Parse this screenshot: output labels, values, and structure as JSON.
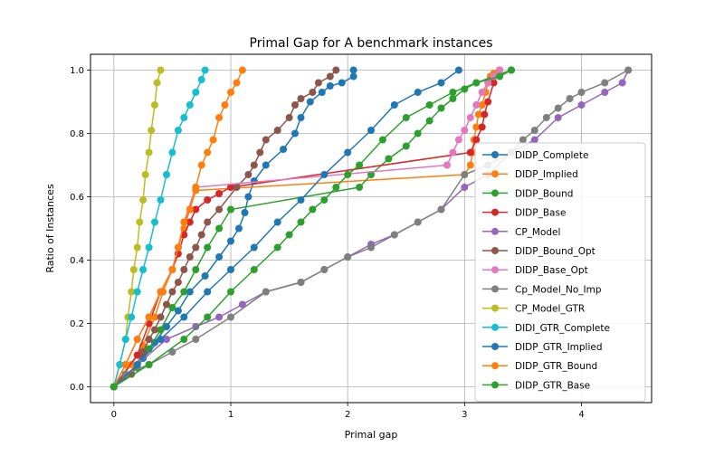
{
  "chart_data": {
    "type": "line",
    "title": "Primal Gap for A benchmark instances",
    "xlabel": "Primal gap",
    "ylabel": "Ratio of Instances",
    "xlim": [
      -0.2,
      4.6
    ],
    "ylim": [
      -0.05,
      1.05
    ],
    "xticks": [
      0,
      1,
      2,
      3,
      4
    ],
    "yticks": [
      0.0,
      0.2,
      0.4,
      0.6,
      0.8,
      1.0
    ],
    "grid": true,
    "legend_position": "lower-right",
    "series": [
      {
        "name": "DIDP_Complete",
        "color": "#1f77b4",
        "x": [
          0.0,
          0.15,
          0.25,
          0.35,
          0.45,
          0.55,
          0.65,
          0.78,
          0.9,
          1.0,
          1.07,
          1.12,
          1.15,
          1.2,
          1.3,
          1.45,
          1.55,
          1.6,
          1.68,
          1.78,
          1.85,
          1.95,
          2.05,
          2.05
        ],
        "y": [
          0.0,
          0.04,
          0.09,
          0.14,
          0.19,
          0.24,
          0.3,
          0.35,
          0.41,
          0.46,
          0.5,
          0.55,
          0.6,
          0.65,
          0.7,
          0.75,
          0.8,
          0.85,
          0.9,
          0.93,
          0.95,
          0.96,
          0.98,
          1.0
        ]
      },
      {
        "name": "DIDP_Implied",
        "color": "#ff7f0e",
        "x": [
          0.0,
          0.15,
          0.25,
          0.35,
          0.42,
          0.5,
          0.55,
          0.6,
          0.65,
          0.7,
          3.0,
          3.05,
          3.07,
          3.08,
          3.1,
          3.12,
          3.15,
          3.18,
          3.2,
          3.22,
          3.25,
          3.3
        ],
        "y": [
          0.0,
          0.07,
          0.13,
          0.22,
          0.3,
          0.37,
          0.44,
          0.5,
          0.56,
          0.62,
          0.67,
          0.7,
          0.74,
          0.78,
          0.82,
          0.86,
          0.89,
          0.93,
          0.96,
          0.98,
          0.99,
          1.0
        ]
      },
      {
        "name": "DIDP_Bound",
        "color": "#2ca02c",
        "x": [
          0.0,
          0.2,
          0.3,
          0.4,
          0.5,
          0.6,
          0.7,
          0.8,
          0.9,
          1.0,
          2.1,
          2.2,
          2.35,
          2.5,
          2.6,
          2.7,
          2.8,
          2.9,
          3.0,
          3.1,
          3.25,
          3.4
        ],
        "y": [
          0.0,
          0.06,
          0.12,
          0.18,
          0.25,
          0.3,
          0.37,
          0.44,
          0.5,
          0.56,
          0.63,
          0.67,
          0.72,
          0.76,
          0.8,
          0.84,
          0.88,
          0.91,
          0.94,
          0.96,
          0.98,
          1.0
        ]
      },
      {
        "name": "DIDP_Base",
        "color": "#d62728",
        "x": [
          0.0,
          0.2,
          0.3,
          0.4,
          0.5,
          0.55,
          0.6,
          0.65,
          0.7,
          0.8,
          0.9,
          1.0,
          3.05,
          3.1,
          3.15,
          3.17,
          3.2,
          3.25,
          3.3
        ],
        "y": [
          0.0,
          0.1,
          0.2,
          0.3,
          0.37,
          0.42,
          0.48,
          0.52,
          0.56,
          0.59,
          0.61,
          0.63,
          0.74,
          0.78,
          0.82,
          0.86,
          0.9,
          0.96,
          1.0
        ]
      },
      {
        "name": "CP_Model",
        "color": "#9467bd",
        "x": [
          0.0,
          0.2,
          0.45,
          0.7,
          0.9,
          1.1,
          1.3,
          1.6,
          1.8,
          2.0,
          2.2,
          2.4,
          2.6,
          2.8,
          3.0,
          3.2,
          3.4,
          3.6,
          3.8,
          4.0,
          4.2,
          4.35,
          4.4
        ],
        "y": [
          0.0,
          0.07,
          0.15,
          0.19,
          0.22,
          0.26,
          0.3,
          0.33,
          0.37,
          0.41,
          0.45,
          0.48,
          0.52,
          0.56,
          0.63,
          0.67,
          0.74,
          0.78,
          0.85,
          0.89,
          0.93,
          0.96,
          1.0
        ]
      },
      {
        "name": "DIDP_Bound_Opt",
        "color": "#8c564b",
        "x": [
          0.0,
          0.15,
          0.25,
          0.3,
          0.35,
          0.4,
          0.45,
          0.5,
          0.55,
          0.6,
          0.65,
          0.7,
          0.75,
          0.8,
          0.9,
          1.05,
          1.15,
          1.2,
          1.25,
          1.3,
          1.4,
          1.5,
          1.55,
          1.6,
          1.7,
          1.75,
          1.85,
          1.9
        ],
        "y": [
          0.0,
          0.04,
          0.11,
          0.15,
          0.18,
          0.22,
          0.26,
          0.3,
          0.33,
          0.37,
          0.41,
          0.44,
          0.48,
          0.52,
          0.56,
          0.63,
          0.67,
          0.7,
          0.74,
          0.78,
          0.81,
          0.85,
          0.89,
          0.91,
          0.93,
          0.96,
          0.98,
          1.0
        ]
      },
      {
        "name": "DIDP_Base_Opt",
        "color": "#e377c2",
        "x": [
          0.0,
          0.1,
          0.2,
          0.3,
          0.4,
          0.5,
          0.55,
          0.6,
          0.7,
          2.85,
          2.9,
          2.95,
          3.0,
          3.05,
          3.1,
          3.15,
          3.2,
          3.25,
          3.3
        ],
        "y": [
          0.0,
          0.07,
          0.15,
          0.22,
          0.3,
          0.37,
          0.44,
          0.52,
          0.63,
          0.7,
          0.74,
          0.78,
          0.81,
          0.85,
          0.89,
          0.93,
          0.96,
          0.98,
          1.0
        ]
      },
      {
        "name": "Cp_Model_No_Imp",
        "color": "#7f7f7f",
        "x": [
          0.0,
          0.1,
          0.3,
          0.5,
          0.7,
          1.0,
          1.3,
          1.6,
          1.8,
          2.0,
          2.2,
          2.4,
          2.6,
          2.8,
          3.0,
          3.2,
          3.4,
          3.5,
          3.6,
          3.7,
          3.8,
          3.9,
          4.0,
          4.2,
          4.4
        ],
        "y": [
          0.0,
          0.04,
          0.07,
          0.11,
          0.15,
          0.22,
          0.3,
          0.33,
          0.37,
          0.41,
          0.44,
          0.48,
          0.52,
          0.56,
          0.67,
          0.7,
          0.74,
          0.78,
          0.81,
          0.85,
          0.88,
          0.91,
          0.93,
          0.96,
          1.0
        ]
      },
      {
        "name": "CP_Model_GTR",
        "color": "#bcbd22",
        "x": [
          0.0,
          0.05,
          0.1,
          0.12,
          0.15,
          0.17,
          0.2,
          0.22,
          0.25,
          0.27,
          0.3,
          0.32,
          0.35,
          0.37,
          0.4
        ],
        "y": [
          0.0,
          0.07,
          0.15,
          0.22,
          0.3,
          0.37,
          0.44,
          0.52,
          0.59,
          0.67,
          0.74,
          0.81,
          0.89,
          0.96,
          1.0
        ]
      },
      {
        "name": "DIDI_GTR_Complete",
        "color": "#17becf",
        "x": [
          0.0,
          0.05,
          0.1,
          0.15,
          0.2,
          0.25,
          0.3,
          0.35,
          0.4,
          0.45,
          0.5,
          0.55,
          0.6,
          0.65,
          0.7,
          0.75,
          0.78
        ],
        "y": [
          0.0,
          0.07,
          0.15,
          0.22,
          0.3,
          0.37,
          0.44,
          0.52,
          0.59,
          0.67,
          0.74,
          0.81,
          0.85,
          0.89,
          0.93,
          0.97,
          1.0
        ]
      },
      {
        "name": "DIDP_GTR_Implied",
        "color": "#1f77b4",
        "x": [
          0.0,
          0.2,
          0.4,
          0.6,
          0.8,
          1.0,
          1.2,
          1.4,
          1.6,
          1.8,
          2.0,
          2.2,
          2.4,
          2.6,
          2.8,
          2.95
        ],
        "y": [
          0.0,
          0.07,
          0.15,
          0.22,
          0.3,
          0.37,
          0.44,
          0.52,
          0.59,
          0.67,
          0.74,
          0.81,
          0.89,
          0.93,
          0.96,
          1.0
        ]
      },
      {
        "name": "DIDP_GTR_Bound",
        "color": "#ff7f0e",
        "x": [
          0.0,
          0.1,
          0.2,
          0.3,
          0.4,
          0.5,
          0.55,
          0.6,
          0.65,
          0.7,
          0.75,
          0.8,
          0.85,
          0.9,
          0.95,
          1.0,
          1.05,
          1.1
        ],
        "y": [
          0.0,
          0.07,
          0.15,
          0.22,
          0.3,
          0.37,
          0.44,
          0.52,
          0.56,
          0.63,
          0.7,
          0.74,
          0.78,
          0.85,
          0.89,
          0.93,
          0.96,
          1.0
        ]
      },
      {
        "name": "DIDP_GTR_Base",
        "color": "#2ca02c",
        "x": [
          0.0,
          0.3,
          0.6,
          0.8,
          1.0,
          1.2,
          1.4,
          1.5,
          1.6,
          1.7,
          1.8,
          1.9,
          2.0,
          2.1,
          2.3,
          2.5,
          2.7,
          2.9,
          3.1,
          3.3,
          3.4
        ],
        "y": [
          0.0,
          0.07,
          0.15,
          0.22,
          0.3,
          0.37,
          0.44,
          0.48,
          0.52,
          0.56,
          0.59,
          0.63,
          0.67,
          0.7,
          0.78,
          0.85,
          0.89,
          0.93,
          0.96,
          0.98,
          1.0
        ]
      }
    ]
  }
}
